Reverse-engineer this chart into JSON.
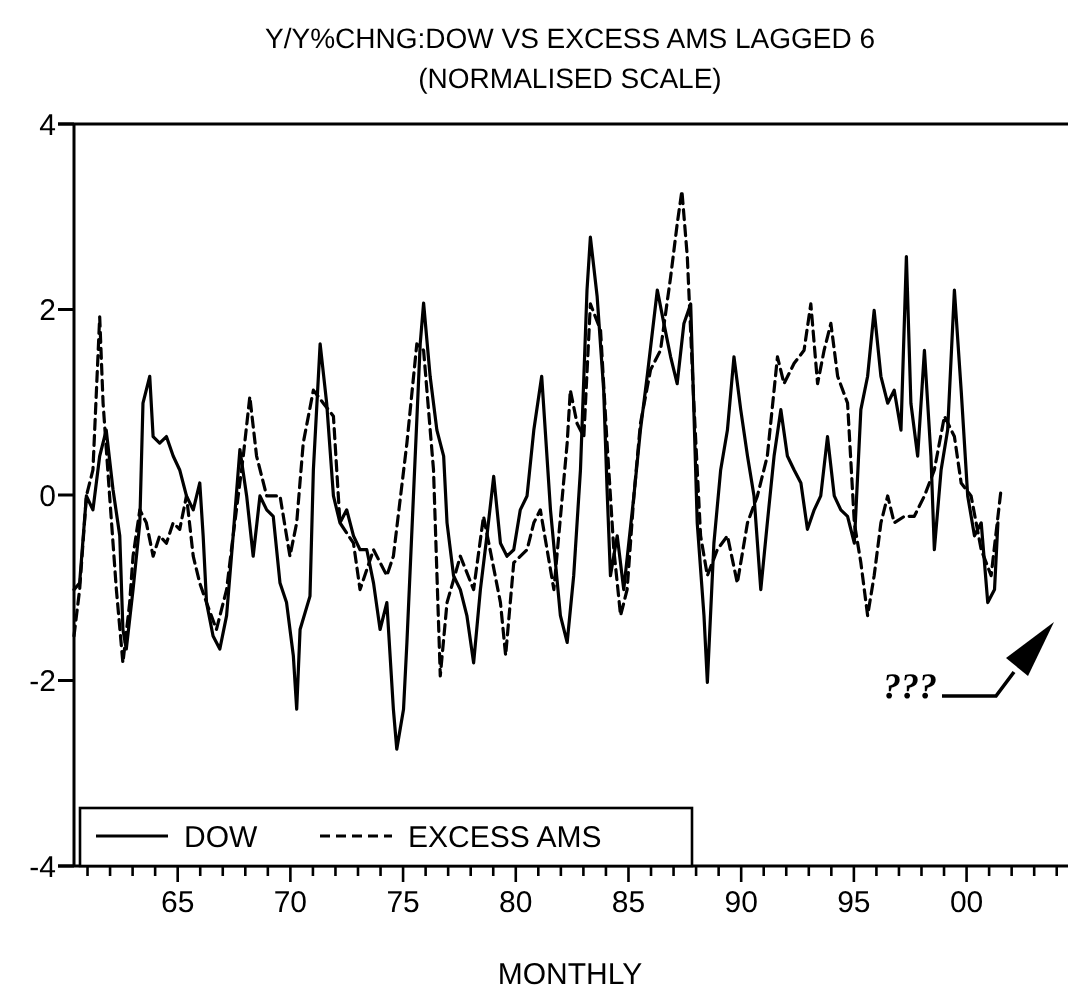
{
  "chart_data": {
    "type": "line",
    "title": "Y/Y%CHNG:DOW VS EXCESS AMS LAGGED 6",
    "subtitle": "(NORMALISED SCALE)",
    "xlabel": "MONTHLY",
    "annotations": [
      "???"
    ],
    "xlim": [
      1960.4,
      2004.5
    ],
    "xticks": [
      {
        "value": 1961,
        "label": null
      },
      {
        "value": 1962,
        "label": null
      },
      {
        "value": 1963,
        "label": null
      },
      {
        "value": 1964,
        "label": null
      },
      {
        "value": 1965,
        "label": "65"
      },
      {
        "value": 1966,
        "label": null
      },
      {
        "value": 1967,
        "label": null
      },
      {
        "value": 1968,
        "label": null
      },
      {
        "value": 1969,
        "label": null
      },
      {
        "value": 1970,
        "label": "70"
      },
      {
        "value": 1971,
        "label": null
      },
      {
        "value": 1972,
        "label": null
      },
      {
        "value": 1973,
        "label": null
      },
      {
        "value": 1974,
        "label": null
      },
      {
        "value": 1975,
        "label": "75"
      },
      {
        "value": 1976,
        "label": null
      },
      {
        "value": 1977,
        "label": null
      },
      {
        "value": 1978,
        "label": null
      },
      {
        "value": 1979,
        "label": null
      },
      {
        "value": 1980,
        "label": "80"
      },
      {
        "value": 1981,
        "label": null
      },
      {
        "value": 1982,
        "label": null
      },
      {
        "value": 1983,
        "label": null
      },
      {
        "value": 1984,
        "label": null
      },
      {
        "value": 1985,
        "label": "85"
      },
      {
        "value": 1986,
        "label": null
      },
      {
        "value": 1987,
        "label": null
      },
      {
        "value": 1988,
        "label": null
      },
      {
        "value": 1989,
        "label": null
      },
      {
        "value": 1990,
        "label": "90"
      },
      {
        "value": 1991,
        "label": null
      },
      {
        "value": 1992,
        "label": null
      },
      {
        "value": 1993,
        "label": null
      },
      {
        "value": 1994,
        "label": null
      },
      {
        "value": 1995,
        "label": "95"
      },
      {
        "value": 1996,
        "label": null
      },
      {
        "value": 1997,
        "label": null
      },
      {
        "value": 1998,
        "label": null
      },
      {
        "value": 1999,
        "label": null
      },
      {
        "value": 2000,
        "label": "00"
      },
      {
        "value": 2001,
        "label": null
      },
      {
        "value": 2002,
        "label": null
      },
      {
        "value": 2003,
        "label": null
      },
      {
        "value": 2004,
        "label": null
      }
    ],
    "ylim": [
      -4,
      4
    ],
    "yticks": [
      -4,
      -2,
      0,
      2,
      4
    ],
    "grid": false,
    "legend": "bottom left",
    "marker": "none",
    "series": [
      {
        "name": "DOW",
        "color": "#000000",
        "line_style": "solid",
        "x": [
          1960.4,
          1960.65,
          1960.95,
          1961.24,
          1961.54,
          1961.83,
          1962.13,
          1962.43,
          1962.57,
          1962.72,
          1963.02,
          1963.32,
          1963.46,
          1963.76,
          1963.91,
          1964.2,
          1964.5,
          1964.8,
          1965.09,
          1965.39,
          1965.69,
          1965.98,
          1966.13,
          1966.28,
          1966.57,
          1966.87,
          1967.17,
          1967.46,
          1967.76,
          1968.06,
          1968.35,
          1968.65,
          1968.95,
          1969.24,
          1969.54,
          1969.83,
          1970.13,
          1970.28,
          1970.43,
          1970.87,
          1971.02,
          1971.32,
          1971.61,
          1971.91,
          1972.2,
          1972.5,
          1972.8,
          1973.09,
          1973.39,
          1973.69,
          1973.98,
          1974.28,
          1974.57,
          1974.72,
          1975.02,
          1975.17,
          1975.46,
          1975.76,
          1975.91,
          1976.2,
          1976.5,
          1976.8,
          1976.95,
          1977.24,
          1977.54,
          1977.83,
          1978.13,
          1978.43,
          1978.72,
          1979.02,
          1979.32,
          1979.61,
          1979.91,
          1980.2,
          1980.5,
          1980.8,
          1981.15,
          1981.54,
          1981.98,
          1982.28,
          1982.57,
          1982.87,
          1983.16,
          1983.31,
          1983.61,
          1983.9,
          1984.05,
          1984.2,
          1984.5,
          1984.79,
          1985.24,
          1985.53,
          1985.83,
          1986.28,
          1986.57,
          1986.87,
          1987.16,
          1987.46,
          1987.76,
          1988.05,
          1988.35,
          1988.5,
          1988.79,
          1989.09,
          1989.39,
          1989.68,
          1989.98,
          1990.28,
          1990.57,
          1990.87,
          1991.16,
          1991.46,
          1991.76,
          1992.05,
          1992.35,
          1992.65,
          1992.94,
          1993.24,
          1993.53,
          1993.83,
          1994.13,
          1994.42,
          1994.72,
          1995.02,
          1995.31,
          1995.61,
          1995.9,
          1996.2,
          1996.5,
          1996.79,
          1997.09,
          1997.33,
          1997.53,
          1997.83,
          1998.13,
          1998.42,
          1998.57,
          1998.87,
          1999.16,
          1999.46,
          1999.76,
          2000.05,
          2000.35,
          2000.65,
          2000.94,
          2001.24,
          2001.39
        ],
        "values": [
          -1.02,
          -0.95,
          -0.01,
          -0.16,
          0.42,
          0.7,
          0.06,
          -0.44,
          -1.45,
          -1.66,
          -1.02,
          -0.3,
          0.99,
          1.28,
          0.63,
          0.56,
          0.63,
          0.42,
          0.27,
          -0.01,
          -0.16,
          0.13,
          -0.44,
          -1.16,
          -1.52,
          -1.66,
          -1.3,
          -0.44,
          0.49,
          -0.01,
          -0.66,
          -0.01,
          -0.16,
          -0.23,
          -0.95,
          -1.16,
          -1.73,
          -2.31,
          -1.45,
          -1.09,
          0.27,
          1.63,
          0.99,
          -0.01,
          -0.3,
          -0.16,
          -0.44,
          -0.59,
          -0.59,
          -0.95,
          -1.45,
          -1.16,
          -2.31,
          -2.74,
          -2.31,
          -1.59,
          -0.01,
          1.63,
          2.07,
          1.28,
          0.7,
          0.42,
          -0.3,
          -0.87,
          -1.02,
          -1.3,
          -1.81,
          -1.02,
          -0.44,
          0.2,
          -0.52,
          -0.66,
          -0.59,
          -0.16,
          -0.01,
          0.7,
          1.28,
          -0.16,
          -1.3,
          -1.59,
          -0.87,
          0.27,
          2.21,
          2.78,
          2.14,
          1.13,
          0.06,
          -0.87,
          -0.44,
          -1.02,
          -0.01,
          0.7,
          1.28,
          2.21,
          1.85,
          1.49,
          1.2,
          1.85,
          2.06,
          -0.3,
          -1.3,
          -2.02,
          -0.52,
          0.27,
          0.7,
          1.49,
          0.92,
          0.42,
          -0.01,
          -1.02,
          -0.3,
          0.42,
          0.92,
          0.42,
          0.27,
          0.13,
          -0.37,
          -0.16,
          -0.01,
          0.63,
          -0.01,
          -0.16,
          -0.23,
          -0.52,
          0.92,
          1.28,
          1.99,
          1.28,
          0.99,
          1.13,
          0.7,
          2.57,
          0.99,
          0.42,
          1.56,
          0.42,
          -0.59,
          0.27,
          0.7,
          2.21,
          1.13,
          -0.01,
          -0.44,
          -0.3,
          -1.16,
          -1.02,
          -0.3
        ]
      },
      {
        "name": "EXCESS AMS",
        "color": "#000000",
        "line_style": "dashed",
        "x": [
          1960.4,
          1960.65,
          1960.95,
          1961.24,
          1961.54,
          1961.69,
          1961.98,
          1962.28,
          1962.57,
          1962.87,
          1963.02,
          1963.32,
          1963.61,
          1963.91,
          1964.2,
          1964.5,
          1964.8,
          1965.09,
          1965.39,
          1965.69,
          1965.98,
          1966.28,
          1966.72,
          1967.17,
          1967.46,
          1967.91,
          1968.2,
          1968.5,
          1968.95,
          1969.54,
          1969.98,
          1970.28,
          1970.57,
          1971.02,
          1971.46,
          1971.91,
          1972.2,
          1972.8,
          1973.09,
          1973.69,
          1974.28,
          1974.57,
          1975.17,
          1975.61,
          1975.91,
          1976.35,
          1976.65,
          1976.95,
          1977.54,
          1978.13,
          1978.57,
          1979.32,
          1979.55,
          1979.91,
          1980.5,
          1980.8,
          1981.09,
          1981.69,
          1982.28,
          1982.42,
          1982.72,
          1983.02,
          1983.31,
          1983.76,
          1984.05,
          1984.35,
          1984.65,
          1984.94,
          1985.24,
          1985.53,
          1985.98,
          1986.42,
          1986.87,
          1987.16,
          1987.37,
          1987.61,
          1987.9,
          1988.2,
          1988.5,
          1988.94,
          1989.39,
          1989.83,
          1990.28,
          1990.72,
          1991.16,
          1991.46,
          1991.61,
          1991.9,
          1992.35,
          1992.79,
          1993.09,
          1993.39,
          1993.68,
          1993.98,
          1994.28,
          1994.72,
          1995.02,
          1995.31,
          1995.61,
          1995.9,
          1996.2,
          1996.5,
          1996.79,
          1997.24,
          1997.68,
          1998.13,
          1998.57,
          1999.02,
          1999.46,
          1999.76,
          2000.2,
          2000.65,
          2001.09,
          2001.53
        ],
        "values": [
          -1.52,
          -1.02,
          -0.01,
          0.27,
          1.92,
          0.99,
          -0.01,
          -1.02,
          -1.81,
          -1.16,
          -0.66,
          -0.16,
          -0.3,
          -0.66,
          -0.44,
          -0.52,
          -0.3,
          -0.37,
          -0.01,
          -0.66,
          -0.95,
          -1.16,
          -1.45,
          -1.02,
          -0.44,
          0.42,
          1.06,
          0.42,
          -0.01,
          -0.01,
          -0.66,
          -0.3,
          0.56,
          1.13,
          0.99,
          0.85,
          -0.3,
          -0.52,
          -1.02,
          -0.59,
          -0.87,
          -0.66,
          0.56,
          1.63,
          1.56,
          0.27,
          -1.95,
          -1.16,
          -0.66,
          -1.02,
          -0.23,
          -1.16,
          -1.73,
          -0.73,
          -0.59,
          -0.3,
          -0.16,
          -1.02,
          0.56,
          1.13,
          0.77,
          0.63,
          2.06,
          1.78,
          0.56,
          -0.59,
          -1.3,
          -1.02,
          -0.01,
          0.77,
          1.35,
          1.56,
          2.35,
          2.92,
          3.28,
          2.57,
          0.99,
          -0.44,
          -0.87,
          -0.59,
          -0.44,
          -0.95,
          -0.3,
          -0.01,
          0.42,
          1.13,
          1.49,
          1.2,
          1.42,
          1.56,
          2.06,
          1.2,
          1.56,
          1.85,
          1.28,
          0.99,
          -0.3,
          -0.73,
          -1.3,
          -0.87,
          -0.3,
          -0.01,
          -0.3,
          -0.23,
          -0.23,
          -0.01,
          0.27,
          0.85,
          0.63,
          0.13,
          -0.01,
          -0.59,
          -0.87,
          0.06
        ]
      }
    ]
  }
}
